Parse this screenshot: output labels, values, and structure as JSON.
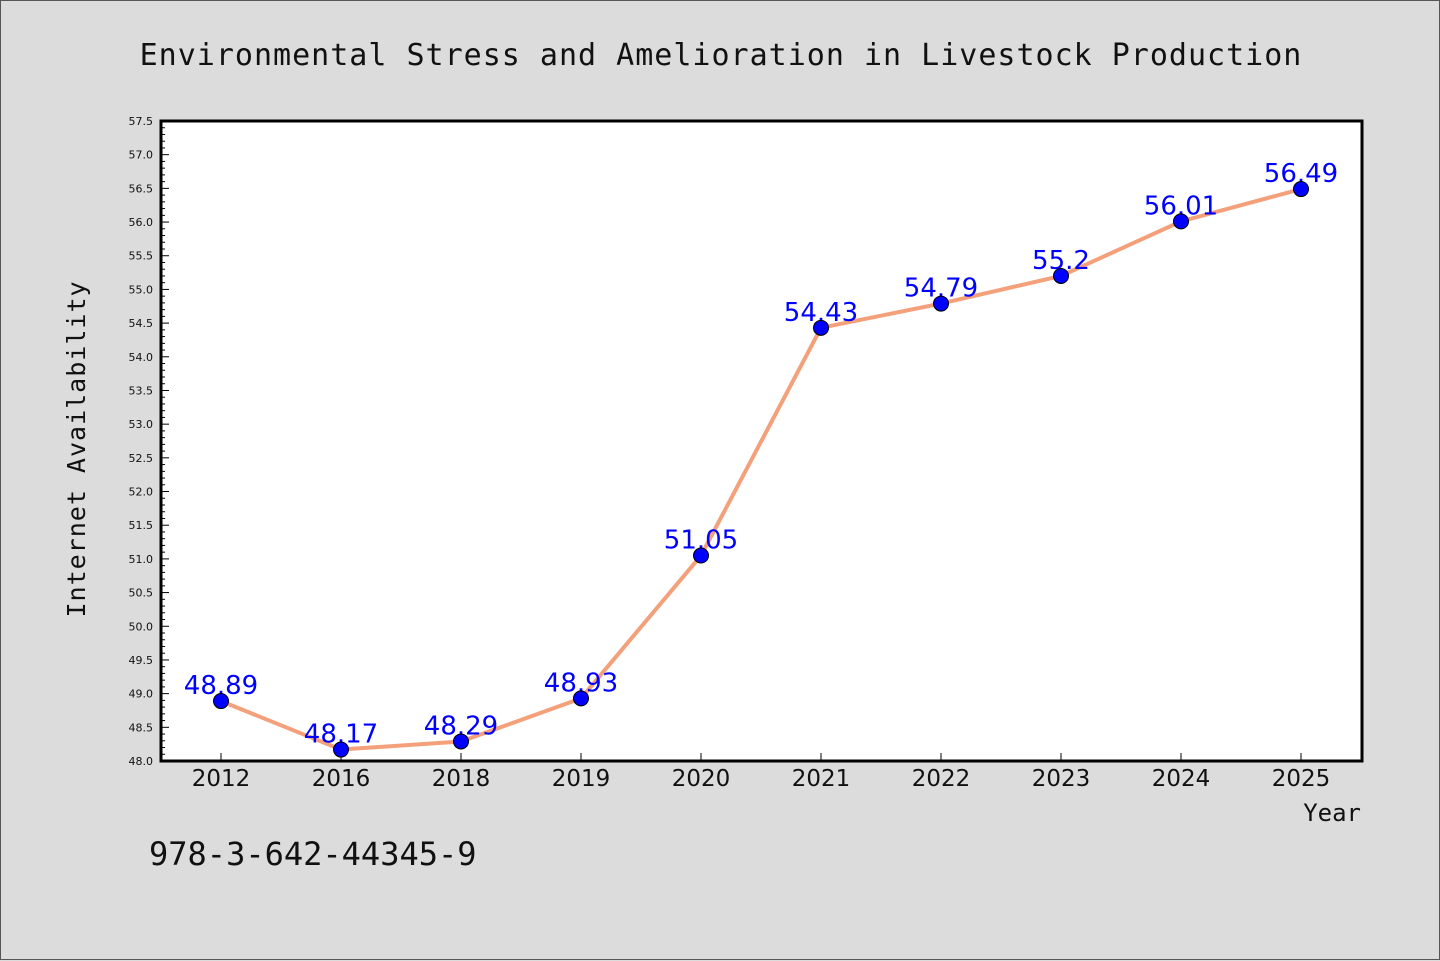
{
  "chart_data": {
    "type": "line",
    "title": "Environmental Stress and Amelioration in Livestock Production",
    "xlabel": "Year",
    "ylabel": "Internet Availability",
    "categories": [
      "2012",
      "2016",
      "2018",
      "2019",
      "2020",
      "2021",
      "2022",
      "2023",
      "2024",
      "2025"
    ],
    "series": [
      {
        "values": [
          48.89,
          48.17,
          48.29,
          48.93,
          51.05,
          54.43,
          54.79,
          55.2,
          56.01,
          56.49
        ],
        "data_labels": [
          "48.89",
          "48.17",
          "48.29",
          "48.93",
          "51.05",
          "54.43",
          "54.79",
          "55.2",
          "56.01",
          "56.49"
        ],
        "line_color": "#f4a07a",
        "marker_color": "#0000ff"
      }
    ],
    "ylim": [
      48.0,
      57.5
    ],
    "yticks": [
      "48.0",
      "48.5",
      "49.0",
      "49.5",
      "50.0",
      "50.5",
      "51.0",
      "51.5",
      "52.0",
      "52.5",
      "53.0",
      "53.5",
      "54.0",
      "54.5",
      "55.0",
      "55.5",
      "56.0",
      "56.5",
      "57.0",
      "57.5"
    ],
    "grid": false,
    "legend": "none"
  },
  "footer": {
    "isbn": "978-3-642-44345-9"
  },
  "colors": {
    "background": "#dcdcdc",
    "plot_area": "#ffffff",
    "line": "#f4a07a",
    "marker": "#0000ff",
    "data_label": "#0000ff"
  }
}
